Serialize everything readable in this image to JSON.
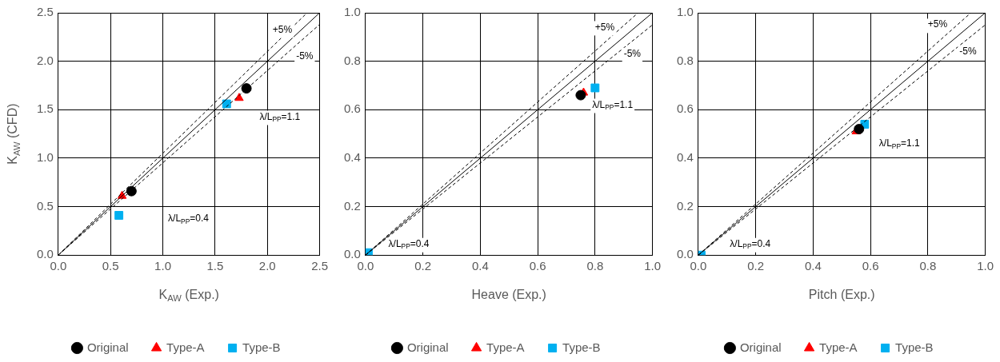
{
  "chart_data": [
    {
      "type": "scatter",
      "xlabel": "K$_{AW}$ (Exp.)",
      "ylabel": "K$_{AW}$ (CFD)",
      "xlim": [
        0,
        2.5
      ],
      "ylim": [
        0,
        2.5
      ],
      "xticks": [
        {
          "value": 0,
          "label": "0.0"
        },
        {
          "value": 0.5,
          "label": "0.5"
        },
        {
          "value": 1,
          "label": "1.0"
        },
        {
          "value": 1.5,
          "label": "1.5"
        },
        {
          "value": 2,
          "label": "2.0"
        },
        {
          "value": 2.5,
          "label": "2.5"
        }
      ],
      "yticks": [
        {
          "value": 0,
          "label": "0.0"
        },
        {
          "value": 0.5,
          "label": "0.5"
        },
        {
          "value": 1,
          "label": "1.0"
        },
        {
          "value": 1.5,
          "label": "1.5"
        },
        {
          "value": 2,
          "label": "2.0"
        },
        {
          "value": 2.5,
          "label": "2.5"
        }
      ],
      "grid": true,
      "legend": "bottom",
      "series": [
        {
          "type": "line",
          "color": "#000000",
          "line_style": "solid",
          "marker": "none",
          "x": [
            0,
            2.5
          ],
          "values": [
            0,
            2.5
          ]
        },
        {
          "type": "line",
          "color": "#000000",
          "line_style": "dashed",
          "marker": "none",
          "x": [
            0,
            2.38
          ],
          "values": [
            0,
            2.5
          ]
        },
        {
          "type": "line",
          "color": "#000000",
          "line_style": "dashed",
          "marker": "none",
          "x": [
            0,
            2.5
          ],
          "values": [
            0,
            2.38
          ]
        },
        {
          "name": "Original",
          "color": "#000000",
          "marker": "circle",
          "x": [
            0.7,
            1.8
          ],
          "values": [
            0.66,
            1.72
          ]
        },
        {
          "name": "Type-A",
          "color": "#ff0000",
          "marker": "triangle",
          "x": [
            0.61,
            1.73
          ],
          "values": [
            0.61,
            1.62
          ]
        },
        {
          "name": "Type-B",
          "color": "#00b0f0",
          "marker": "square",
          "x": [
            0.58,
            1.61
          ],
          "values": [
            0.41,
            1.56
          ]
        }
      ],
      "annotations": [
        "+5%",
        "-5%",
        "λ/L$_{PP}$=1.1",
        "λ/L$_{PP}$=0.4"
      ]
    },
    {
      "type": "scatter",
      "xlabel": "Heave (Exp.)",
      "xlim": [
        0,
        1
      ],
      "ylim": [
        0,
        1
      ],
      "xticks": [
        {
          "value": 0,
          "label": "0.0"
        },
        {
          "value": 0.2,
          "label": "0.2"
        },
        {
          "value": 0.4,
          "label": "0.4"
        },
        {
          "value": 0.6,
          "label": "0.6"
        },
        {
          "value": 0.8,
          "label": "0.8"
        },
        {
          "value": 1,
          "label": "1.0"
        }
      ],
      "yticks": [
        {
          "value": 0,
          "label": "0.0"
        },
        {
          "value": 0.2,
          "label": "0.2"
        },
        {
          "value": 0.4,
          "label": "0.4"
        },
        {
          "value": 0.6,
          "label": "0.6"
        },
        {
          "value": 0.8,
          "label": "0.8"
        },
        {
          "value": 1,
          "label": "1.0"
        }
      ],
      "grid": true,
      "legend": "bottom",
      "series": [
        {
          "type": "line",
          "color": "#000000",
          "line_style": "solid",
          "marker": "none",
          "x": [
            0,
            1
          ],
          "values": [
            0,
            1
          ]
        },
        {
          "type": "line",
          "color": "#000000",
          "line_style": "dashed",
          "marker": "none",
          "x": [
            0,
            0.95
          ],
          "values": [
            0,
            1
          ]
        },
        {
          "type": "line",
          "color": "#000000",
          "line_style": "dashed",
          "marker": "none",
          "x": [
            0,
            1
          ],
          "values": [
            0,
            0.95
          ]
        },
        {
          "name": "Original",
          "color": "#000000",
          "marker": "circle",
          "x": [
            0.75
          ],
          "values": [
            0.66
          ]
        },
        {
          "name": "Type-A",
          "color": "#ff0000",
          "marker": "triangle",
          "x": [
            0.76
          ],
          "values": [
            0.67
          ]
        },
        {
          "name": "Type-B",
          "color": "#00b0f0",
          "marker": "square",
          "x": [
            0.01,
            0.8
          ],
          "values": [
            0.01,
            0.69
          ]
        }
      ],
      "annotations": [
        "+5%",
        "-5%",
        "λ/L$_{PP}$=1.1",
        "λ/L$_{PP}$=0.4"
      ]
    },
    {
      "type": "scatter",
      "xlabel": "Pitch (Exp.)",
      "xlim": [
        0,
        1
      ],
      "ylim": [
        0,
        1
      ],
      "xticks": [
        {
          "value": 0,
          "label": "0.0"
        },
        {
          "value": 0.2,
          "label": "0.2"
        },
        {
          "value": 0.4,
          "label": "0.4"
        },
        {
          "value": 0.6,
          "label": "0.6"
        },
        {
          "value": 0.8,
          "label": "0.8"
        },
        {
          "value": 1,
          "label": "1.0"
        }
      ],
      "yticks": [
        {
          "value": 0,
          "label": "0.0"
        },
        {
          "value": 0.2,
          "label": "0.2"
        },
        {
          "value": 0.4,
          "label": "0.4"
        },
        {
          "value": 0.6,
          "label": "0.6"
        },
        {
          "value": 0.8,
          "label": "0.8"
        },
        {
          "value": 1,
          "label": "1.0"
        }
      ],
      "grid": true,
      "legend": "bottom",
      "series": [
        {
          "type": "line",
          "color": "#000000",
          "line_style": "solid",
          "marker": "none",
          "x": [
            0,
            1
          ],
          "values": [
            0,
            1
          ]
        },
        {
          "type": "line",
          "color": "#000000",
          "line_style": "dashed",
          "marker": "none",
          "x": [
            0,
            0.95
          ],
          "values": [
            0,
            1
          ]
        },
        {
          "type": "line",
          "color": "#000000",
          "line_style": "dashed",
          "marker": "none",
          "x": [
            0,
            1
          ],
          "values": [
            0,
            0.95
          ]
        },
        {
          "name": "Original",
          "color": "#000000",
          "marker": "circle",
          "x": [
            0.56
          ],
          "values": [
            0.52
          ]
        },
        {
          "name": "Type-A",
          "color": "#ff0000",
          "marker": "triangle",
          "x": [
            0.55
          ],
          "values": [
            0.51
          ]
        },
        {
          "name": "Type-B",
          "color": "#00b0f0",
          "marker": "square",
          "x": [
            0.01,
            0.58
          ],
          "values": [
            0.0,
            0.54
          ]
        }
      ],
      "annotations": [
        "+5%",
        "-5%",
        "λ/L$_{PP}$=1.1",
        "λ/L$_{PP}$=0.4"
      ]
    }
  ]
}
